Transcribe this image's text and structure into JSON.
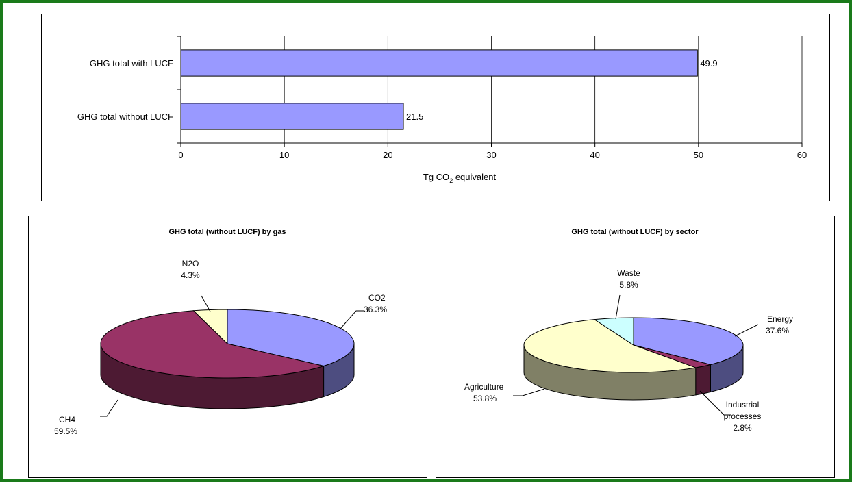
{
  "colors": {
    "frame": "#1a7a1a",
    "bar": "#9999ff",
    "co2": "#9999ff",
    "ch4": "#993366",
    "n2o": "#ffffcc",
    "energy": "#9999ff",
    "industrial": "#993366",
    "agriculture": "#ffffcc",
    "waste": "#ccffff"
  },
  "chart_data": [
    {
      "type": "bar",
      "orientation": "horizontal",
      "title": "",
      "categories": [
        "GHG total with LUCF",
        "GHG total without LUCF"
      ],
      "values": [
        49.9,
        21.5
      ],
      "value_labels": [
        "49.9",
        "21.5"
      ],
      "xlabel_main": "Tg CO",
      "xlabel_sub": "2",
      "xlabel_tail": " equivalent",
      "xlim": [
        0,
        60
      ],
      "xticks": [
        "0",
        "10",
        "20",
        "30",
        "40",
        "50",
        "60"
      ],
      "grid": "vertical",
      "legend": "none"
    },
    {
      "type": "pie",
      "style": "3d",
      "title": "GHG total (without LUCF) by gas",
      "slices": [
        {
          "name": "CO2",
          "value": 36.3,
          "label": "36.3%",
          "color": "#9999ff"
        },
        {
          "name": "CH4",
          "value": 59.5,
          "label": "59.5%",
          "color": "#993366"
        },
        {
          "name": "N2O",
          "value": 4.3,
          "label": "4.3%",
          "color": "#ffffcc"
        }
      ]
    },
    {
      "type": "pie",
      "style": "3d",
      "title": "GHG total (without LUCF) by sector",
      "slices": [
        {
          "name": "Energy",
          "value": 37.6,
          "label": "37.6%",
          "color": "#9999ff"
        },
        {
          "name": "Industrial processes",
          "name_lines": [
            "Industrial",
            "processes"
          ],
          "value": 2.8,
          "label": "2.8%",
          "color": "#993366"
        },
        {
          "name": "Agriculture",
          "value": 53.8,
          "label": "53.8%",
          "color": "#ffffcc"
        },
        {
          "name": "Waste",
          "value": 5.8,
          "label": "5.8%",
          "color": "#ccffff"
        }
      ]
    }
  ]
}
